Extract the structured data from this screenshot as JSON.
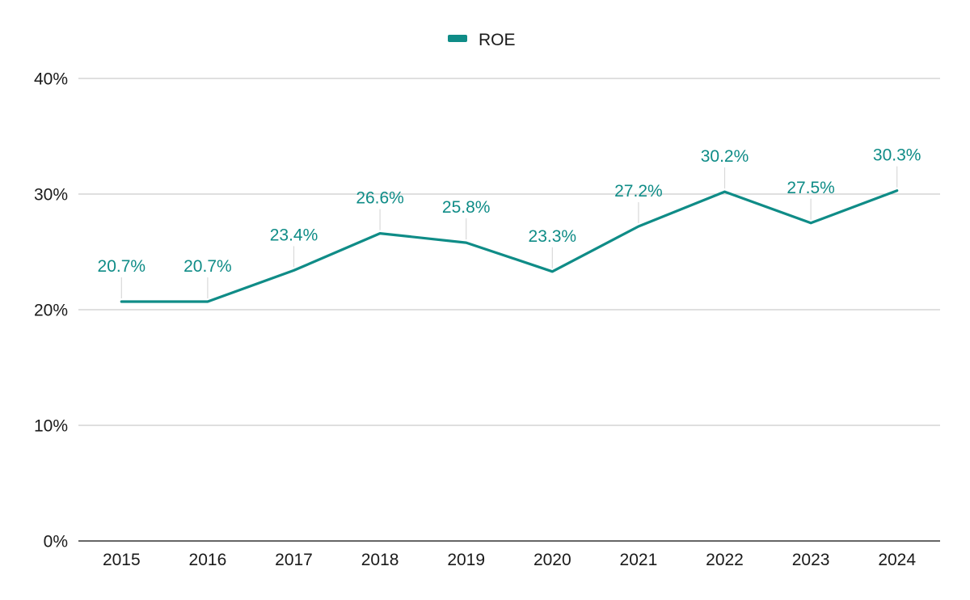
{
  "chart_data": {
    "type": "line",
    "title": "",
    "xlabel": "",
    "ylabel": "",
    "categories": [
      "2015",
      "2016",
      "2017",
      "2018",
      "2019",
      "2020",
      "2021",
      "2022",
      "2023",
      "2024"
    ],
    "series": [
      {
        "name": "ROE",
        "values": [
          20.7,
          20.7,
          23.4,
          26.6,
          25.8,
          23.3,
          27.2,
          30.2,
          27.5,
          30.3
        ],
        "labels": [
          "20.7%",
          "20.7%",
          "23.4%",
          "26.6%",
          "25.8%",
          "23.3%",
          "27.2%",
          "30.2%",
          "27.5%",
          "30.3%"
        ]
      }
    ],
    "ylim": [
      0,
      40
    ],
    "yticks": [
      0,
      10,
      20,
      30,
      40
    ],
    "ytick_labels": [
      "0%",
      "10%",
      "20%",
      "30%",
      "40%"
    ],
    "grid": true,
    "legend_position": "top-center",
    "colors": {
      "series": "#0f8c87",
      "grid": "#cccccc",
      "axis": "#333333",
      "leader": "#d9d9d9"
    }
  }
}
